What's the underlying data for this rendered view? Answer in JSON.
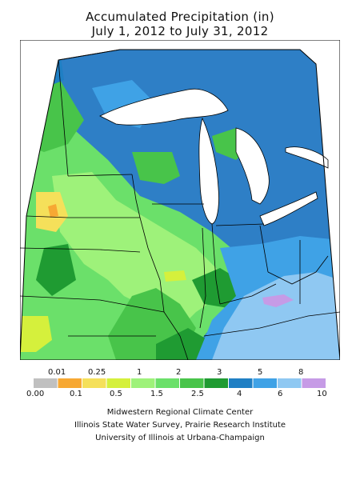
{
  "title": "Accumulated Precipitation (in)",
  "subtitle": "July 1, 2012 to July 31, 2012",
  "legend": {
    "upper_labels": [
      "0.01",
      "0.25",
      "1",
      "2",
      "3",
      "5",
      "8"
    ],
    "lower_labels": [
      "0.00",
      "0.1",
      "0.5",
      "1.5",
      "2.5",
      "4",
      "6",
      "10"
    ],
    "colors": [
      "#c0c0c0",
      "#f7a833",
      "#f5e05a",
      "#d5f03c",
      "#9ef27a",
      "#6be06a",
      "#48c44a",
      "#1f9b32",
      "#1f7fc4",
      "#3fa2e6",
      "#8fc8f2",
      "#c69be6"
    ]
  },
  "credits": [
    "Midwestern Regional Climate Center",
    "Illinois State Water Survey, Prairie Research Institute",
    "University of Illinois at Urbana-Champaign"
  ]
}
